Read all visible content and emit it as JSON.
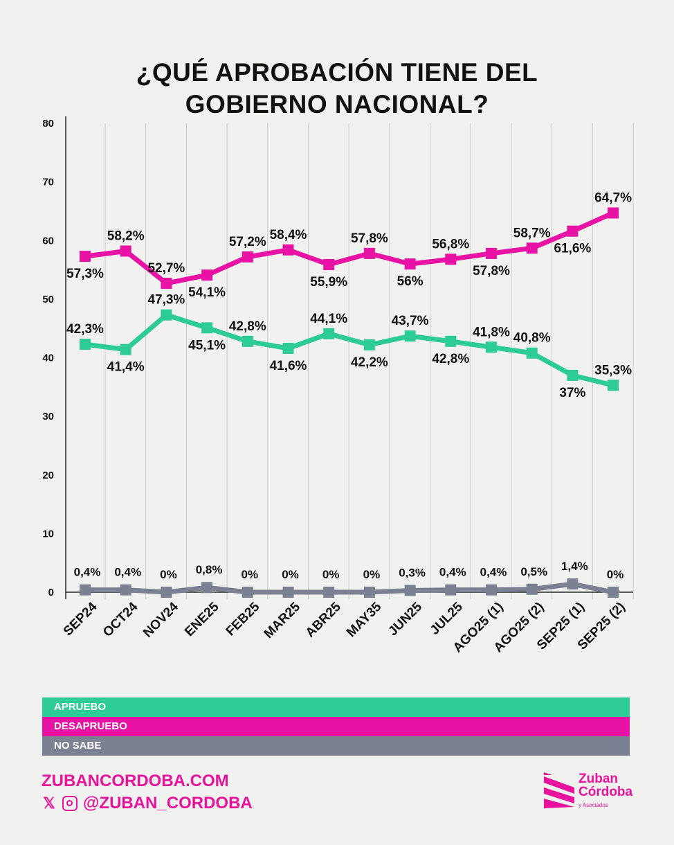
{
  "chart_data": {
    "type": "line",
    "title": "¿QUÉ APROBACIÓN TIENE DEL GOBIERNO NACIONAL?",
    "title_lines": [
      "¿QUÉ APROBACIÓN TIENE DEL",
      "GOBIERNO NACIONAL?"
    ],
    "categories": [
      "SEP24",
      "OCT24",
      "NOV24",
      "ENE25",
      "FEB25",
      "MAR25",
      "ABR25",
      "MAY35",
      "JUN25",
      "JUL25",
      "AGO25 (1)",
      "AGO25 (2)",
      "SEP25 (1)",
      "SEP25 (2)"
    ],
    "ylim": [
      0,
      80
    ],
    "yticks": [
      0,
      10,
      20,
      30,
      40,
      50,
      60,
      70,
      80
    ],
    "grid": "vertical",
    "series": [
      {
        "name": "APRUEBO",
        "color": "#2ecc95",
        "values": [
          42.3,
          41.4,
          47.3,
          45.1,
          42.8,
          41.6,
          44.1,
          42.2,
          43.7,
          42.8,
          41.8,
          40.8,
          37,
          35.3
        ],
        "labels": [
          "42,3%",
          "41,4%",
          "47,3%",
          "45,1%",
          "42,8%",
          "41,6%",
          "44,1%",
          "42,2%",
          "43,7%",
          "42,8%",
          "41,8%",
          "40,8%",
          "37%",
          "35,3%"
        ]
      },
      {
        "name": "DESAPRUEBO",
        "color": "#e813a5",
        "values": [
          57.3,
          58.2,
          52.7,
          54.1,
          57.2,
          58.4,
          55.9,
          57.8,
          56,
          56.8,
          57.8,
          58.7,
          61.6,
          64.7
        ],
        "labels": [
          "57,3%",
          "58,2%",
          "52,7%",
          "54,1%",
          "57,2%",
          "58,4%",
          "55,9%",
          "57,8%",
          "56%",
          "56,8%",
          "57,8%",
          "58,7%",
          "61,6%",
          "64,7%"
        ]
      },
      {
        "name": "NO SABE",
        "color": "#7c8093",
        "values": [
          0.4,
          0.4,
          0,
          0.8,
          0,
          0,
          0,
          0,
          0.3,
          0.4,
          0.4,
          0.5,
          1.4,
          0
        ],
        "labels": [
          "0,4%",
          "0,4%",
          "0%",
          "0,8%",
          "0%",
          "0%",
          "0%",
          "0%",
          "0,3%",
          "0,4%",
          "0,4%",
          "0,5%",
          "1,4%",
          "0%"
        ]
      }
    ],
    "legend": "bottom"
  },
  "footer": {
    "website": "ZUBANCORDOBA.COM",
    "handle": "@ZUBAN_CORDOBA",
    "logo_lines": [
      "Zuban",
      "Córdoba",
      "y Asociados"
    ]
  }
}
